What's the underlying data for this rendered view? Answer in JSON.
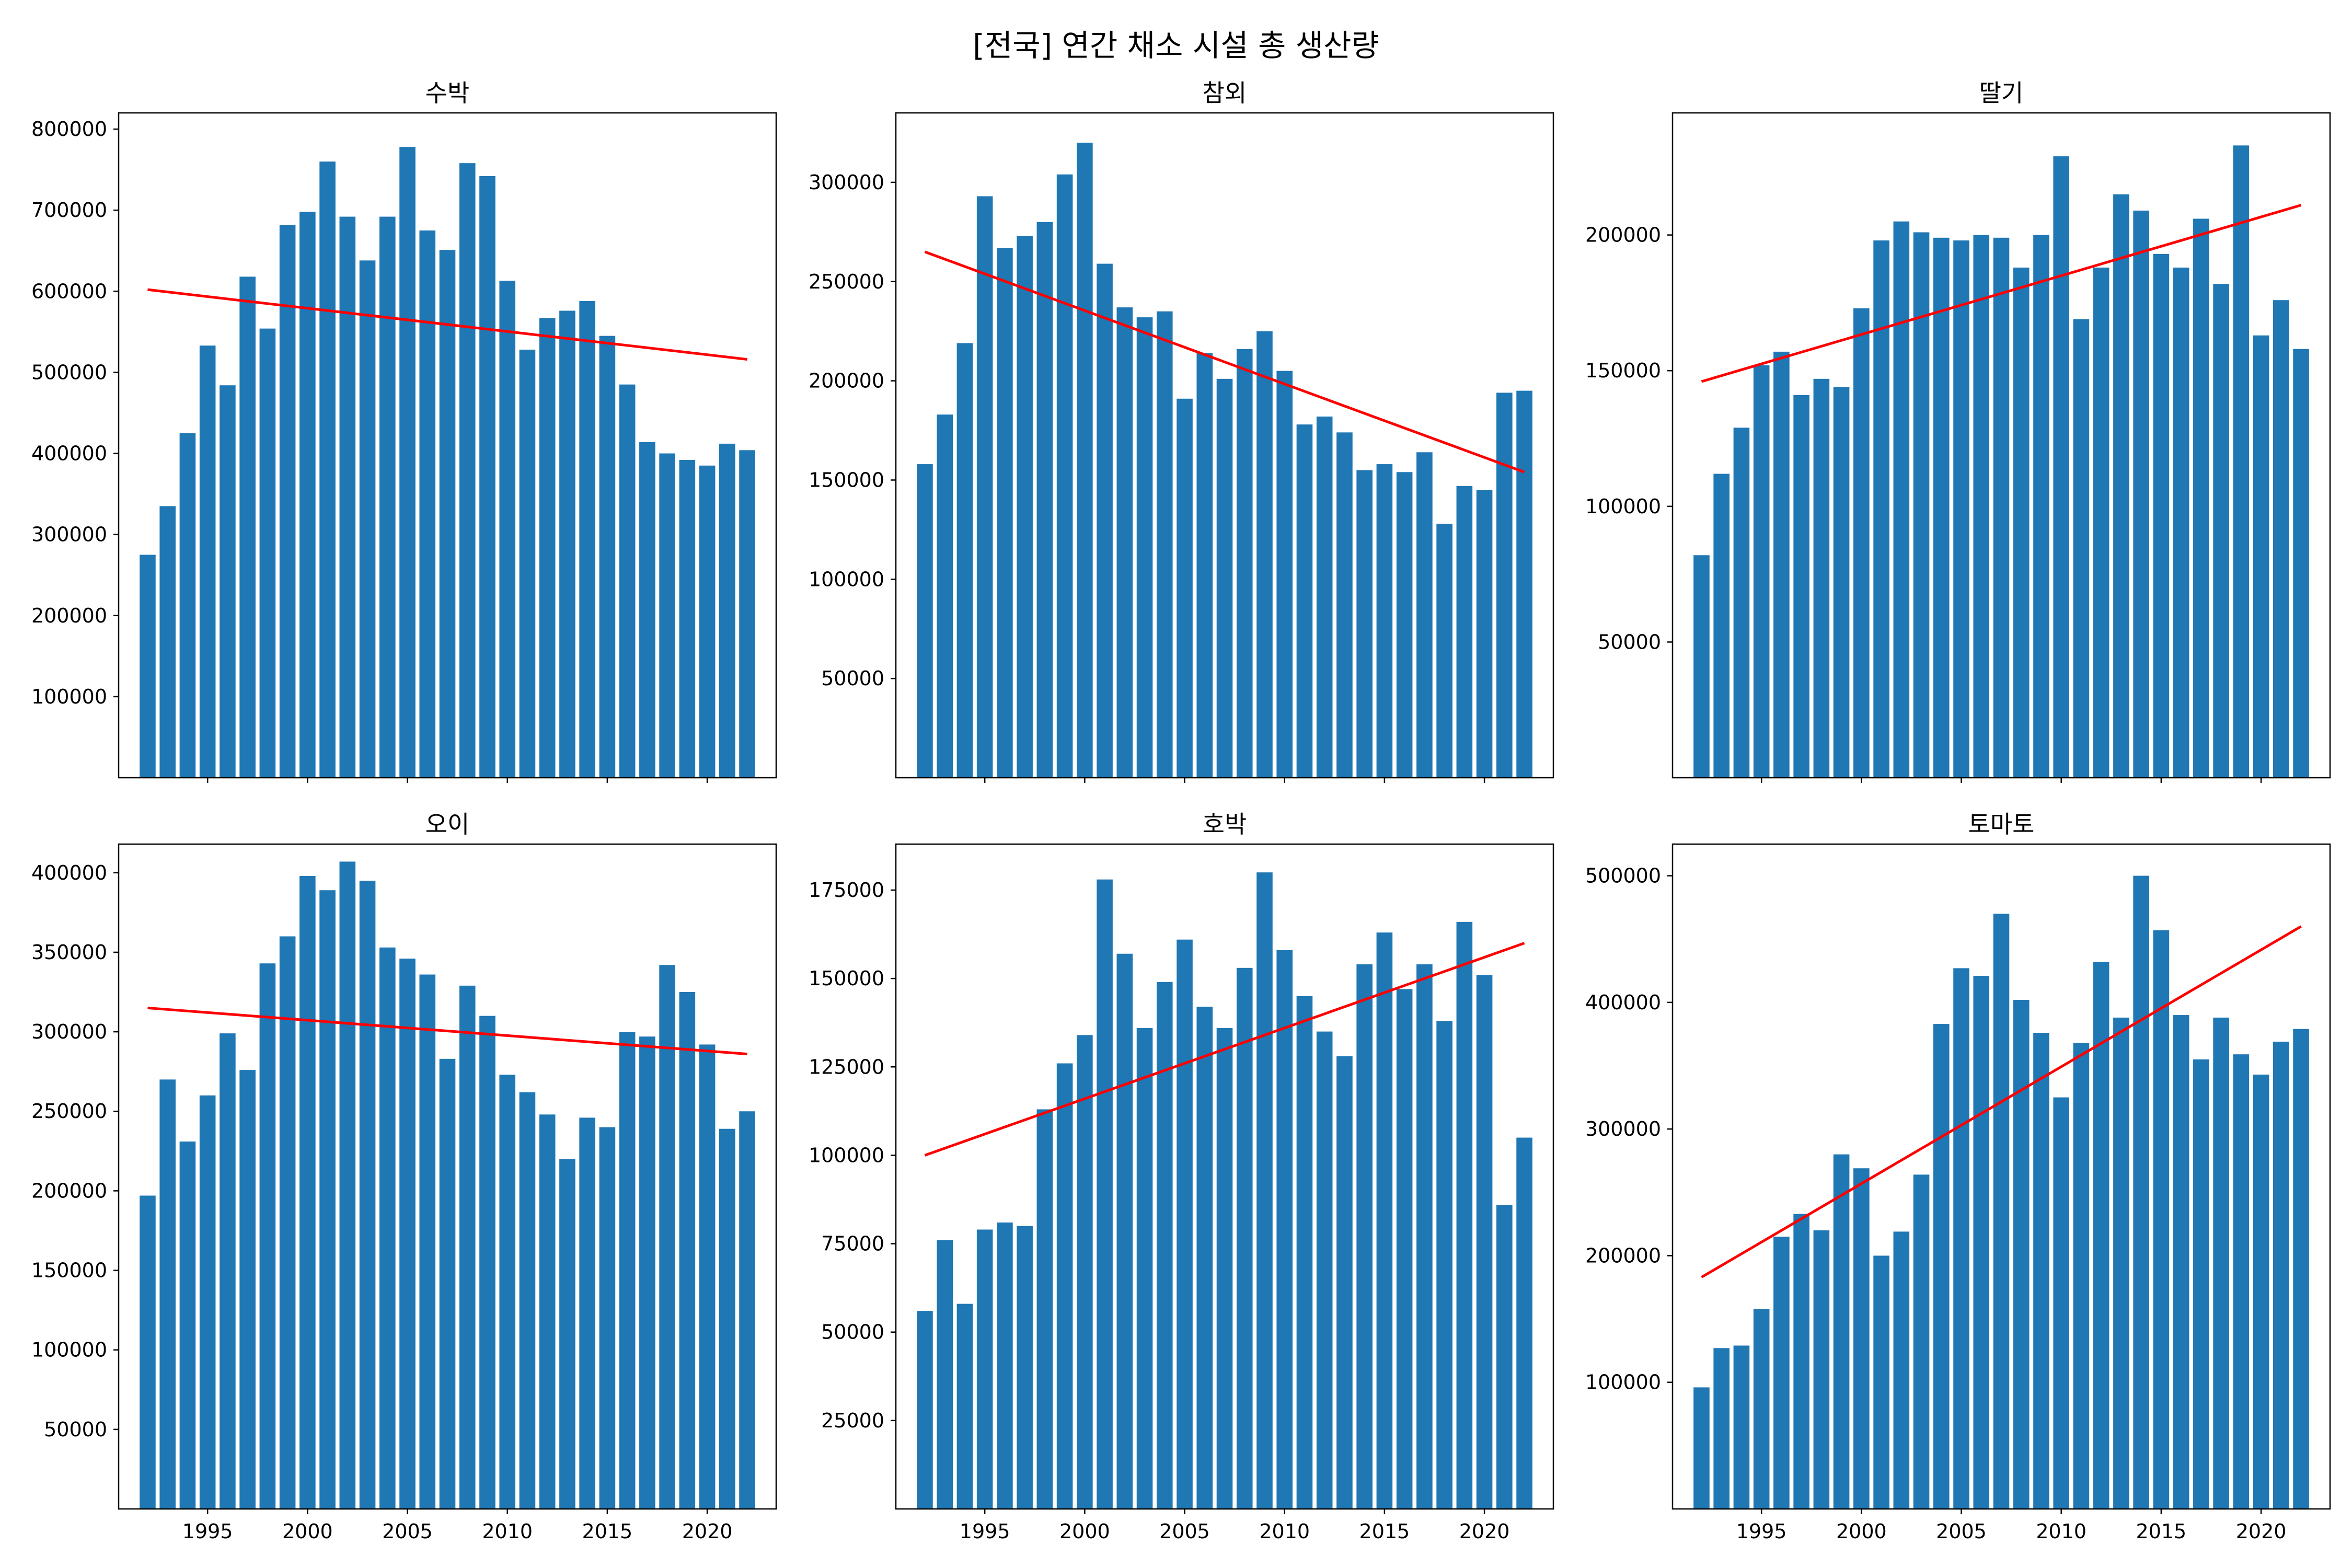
{
  "figure": {
    "suptitle": "[전국] 연간 채소 시설 총 생산량"
  },
  "colors": {
    "bar": "#1f77b4",
    "trend": "#ff0000",
    "axis": "#000000"
  },
  "chart_data": [
    {
      "type": "bar",
      "title": "수박",
      "x": [
        1992,
        1993,
        1994,
        1995,
        1996,
        1997,
        1998,
        1999,
        2000,
        2001,
        2002,
        2003,
        2004,
        2005,
        2006,
        2007,
        2008,
        2009,
        2010,
        2011,
        2012,
        2013,
        2014,
        2015,
        2016,
        2017,
        2018,
        2019,
        2020,
        2021,
        2022
      ],
      "values": [
        275000,
        335000,
        425000,
        533000,
        484000,
        618000,
        554000,
        682000,
        698000,
        760000,
        692000,
        638000,
        692000,
        778000,
        675000,
        651000,
        758000,
        742000,
        613000,
        528000,
        567000,
        576000,
        588000,
        545000,
        485000,
        414000,
        400000,
        392000,
        385000,
        412000,
        404000
      ],
      "trend": [
        602000,
        516000
      ],
      "ylim": [
        0,
        820000
      ],
      "yticks": [
        100000,
        200000,
        300000,
        400000,
        500000,
        600000,
        700000,
        800000
      ],
      "xticks": [
        1995,
        2000,
        2005,
        2010,
        2015,
        2020
      ],
      "show_xticklabels": false
    },
    {
      "type": "bar",
      "title": "참외",
      "x": [
        1992,
        1993,
        1994,
        1995,
        1996,
        1997,
        1998,
        1999,
        2000,
        2001,
        2002,
        2003,
        2004,
        2005,
        2006,
        2007,
        2008,
        2009,
        2010,
        2011,
        2012,
        2013,
        2014,
        2015,
        2016,
        2017,
        2018,
        2019,
        2020,
        2021,
        2022
      ],
      "values": [
        158000,
        183000,
        219000,
        293000,
        267000,
        273000,
        280000,
        304000,
        320000,
        259000,
        237000,
        232000,
        235000,
        191000,
        214000,
        201000,
        216000,
        225000,
        205000,
        178000,
        182000,
        174000,
        155000,
        158000,
        154000,
        164000,
        128000,
        147000,
        145000,
        194000,
        195000
      ],
      "trend": [
        265000,
        154000
      ],
      "ylim": [
        0,
        335000
      ],
      "yticks": [
        50000,
        100000,
        150000,
        200000,
        250000,
        300000
      ],
      "xticks": [
        1995,
        2000,
        2005,
        2010,
        2015,
        2020
      ],
      "show_xticklabels": false
    },
    {
      "type": "bar",
      "title": "딸기",
      "x": [
        1992,
        1993,
        1994,
        1995,
        1996,
        1997,
        1998,
        1999,
        2000,
        2001,
        2002,
        2003,
        2004,
        2005,
        2006,
        2007,
        2008,
        2009,
        2010,
        2011,
        2012,
        2013,
        2014,
        2015,
        2016,
        2017,
        2018,
        2019,
        2020,
        2021,
        2022
      ],
      "values": [
        82000,
        112000,
        129000,
        152000,
        157000,
        141000,
        147000,
        144000,
        173000,
        198000,
        205000,
        201000,
        199000,
        198000,
        200000,
        199000,
        188000,
        200000,
        229000,
        169000,
        188000,
        215000,
        209000,
        193000,
        188000,
        206000,
        182000,
        233000,
        163000,
        176000,
        158000
      ],
      "trend": [
        146000,
        211000
      ],
      "ylim": [
        0,
        245000
      ],
      "yticks": [
        50000,
        100000,
        150000,
        200000
      ],
      "xticks": [
        1995,
        2000,
        2005,
        2010,
        2015,
        2020
      ],
      "show_xticklabels": false
    },
    {
      "type": "bar",
      "title": "오이",
      "x": [
        1992,
        1993,
        1994,
        1995,
        1996,
        1997,
        1998,
        1999,
        2000,
        2001,
        2002,
        2003,
        2004,
        2005,
        2006,
        2007,
        2008,
        2009,
        2010,
        2011,
        2012,
        2013,
        2014,
        2015,
        2016,
        2017,
        2018,
        2019,
        2020,
        2021,
        2022
      ],
      "values": [
        197000,
        270000,
        231000,
        260000,
        299000,
        276000,
        343000,
        360000,
        398000,
        389000,
        407000,
        395000,
        353000,
        346000,
        336000,
        283000,
        329000,
        310000,
        273000,
        262000,
        248000,
        220000,
        246000,
        240000,
        300000,
        297000,
        342000,
        325000,
        292000,
        239000,
        250000
      ],
      "trend": [
        315000,
        286000
      ],
      "ylim": [
        0,
        418000
      ],
      "yticks": [
        50000,
        100000,
        150000,
        200000,
        250000,
        300000,
        350000,
        400000
      ],
      "xticks": [
        1995,
        2000,
        2005,
        2010,
        2015,
        2020
      ],
      "show_xticklabels": true
    },
    {
      "type": "bar",
      "title": "호박",
      "x": [
        1992,
        1993,
        1994,
        1995,
        1996,
        1997,
        1998,
        1999,
        2000,
        2001,
        2002,
        2003,
        2004,
        2005,
        2006,
        2007,
        2008,
        2009,
        2010,
        2011,
        2012,
        2013,
        2014,
        2015,
        2016,
        2017,
        2018,
        2019,
        2020,
        2021,
        2022
      ],
      "values": [
        56000,
        76000,
        58000,
        79000,
        81000,
        80000,
        113000,
        126000,
        134000,
        178000,
        157000,
        136000,
        149000,
        161000,
        142000,
        136000,
        153000,
        180000,
        158000,
        145000,
        135000,
        128000,
        154000,
        163000,
        147000,
        154000,
        138000,
        166000,
        151000,
        86000,
        105000
      ],
      "trend": [
        100000,
        160000
      ],
      "ylim": [
        0,
        188000
      ],
      "yticks": [
        25000,
        50000,
        75000,
        100000,
        125000,
        150000,
        175000
      ],
      "xticks": [
        1995,
        2000,
        2005,
        2010,
        2015,
        2020
      ],
      "show_xticklabels": true
    },
    {
      "type": "bar",
      "title": "토마토",
      "x": [
        1992,
        1993,
        1994,
        1995,
        1996,
        1997,
        1998,
        1999,
        2000,
        2001,
        2002,
        2003,
        2004,
        2005,
        2006,
        2007,
        2008,
        2009,
        2010,
        2011,
        2012,
        2013,
        2014,
        2015,
        2016,
        2017,
        2018,
        2019,
        2020,
        2021,
        2022
      ],
      "values": [
        96000,
        127000,
        129000,
        158000,
        215000,
        233000,
        220000,
        280000,
        269000,
        200000,
        219000,
        264000,
        383000,
        427000,
        421000,
        470000,
        402000,
        376000,
        325000,
        368000,
        432000,
        388000,
        500000,
        457000,
        390000,
        355000,
        388000,
        359000,
        343000,
        369000,
        379000
      ],
      "trend": [
        183000,
        460000
      ],
      "ylim": [
        0,
        525000
      ],
      "yticks": [
        100000,
        200000,
        300000,
        400000,
        500000
      ],
      "xticks": [
        1995,
        2000,
        2005,
        2010,
        2015,
        2020
      ],
      "show_xticklabels": true
    }
  ]
}
